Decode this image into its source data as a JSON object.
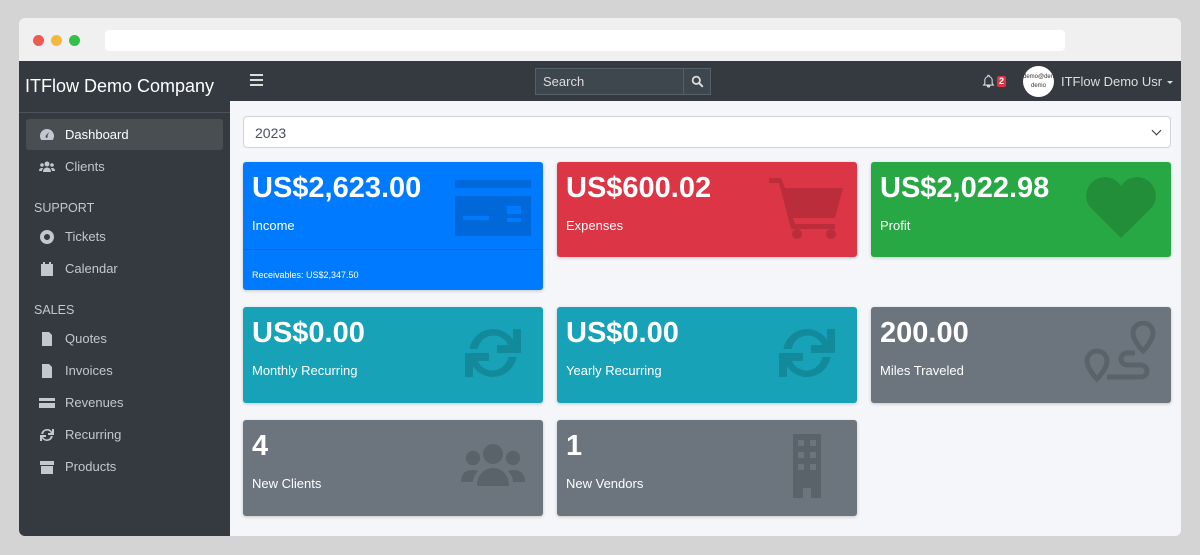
{
  "browser": {
    "dots": [
      "#ee5a52",
      "#f5b93a",
      "#2fc246"
    ]
  },
  "sidebar": {
    "brand": "ITFlow Demo Company",
    "items": [
      {
        "label": "Dashboard",
        "icon": "tachometer-icon"
      },
      {
        "label": "Clients",
        "icon": "users-icon"
      }
    ],
    "support_header": "SUPPORT",
    "support": [
      {
        "label": "Tickets",
        "icon": "life-ring-icon"
      },
      {
        "label": "Calendar",
        "icon": "calendar-icon"
      }
    ],
    "sales_header": "SALES",
    "sales": [
      {
        "label": "Quotes",
        "icon": "file-icon"
      },
      {
        "label": "Invoices",
        "icon": "invoice-icon"
      },
      {
        "label": "Revenues",
        "icon": "credit-card-icon"
      },
      {
        "label": "Recurring",
        "icon": "sync-icon"
      },
      {
        "label": "Products",
        "icon": "box-icon"
      }
    ]
  },
  "topbar": {
    "search_placeholder": "Search",
    "notifications": "2",
    "avatar_text": "demo@demo demo",
    "user": "ITFlow Demo Usr"
  },
  "year_select": "2023",
  "cards": [
    {
      "value": "US$2,623.00",
      "label": "Income",
      "footer": "Receivables: US$2,347.50",
      "color": "#007bff"
    },
    {
      "value": "US$600.02",
      "label": "Expenses",
      "color": "#dc3545"
    },
    {
      "value": "US$2,022.98",
      "label": "Profit",
      "color": "#28a745"
    },
    {
      "value": "US$0.00",
      "label": "Monthly Recurring",
      "color": "#17a2b8"
    },
    {
      "value": "US$0.00",
      "label": "Yearly Recurring",
      "color": "#17a2b8"
    },
    {
      "value": "200.00",
      "label": "Miles Traveled",
      "color": "#6c757d"
    },
    {
      "value": "4",
      "label": "New Clients",
      "color": "#6c757d"
    },
    {
      "value": "1",
      "label": "New Vendors",
      "color": "#6c757d"
    }
  ]
}
